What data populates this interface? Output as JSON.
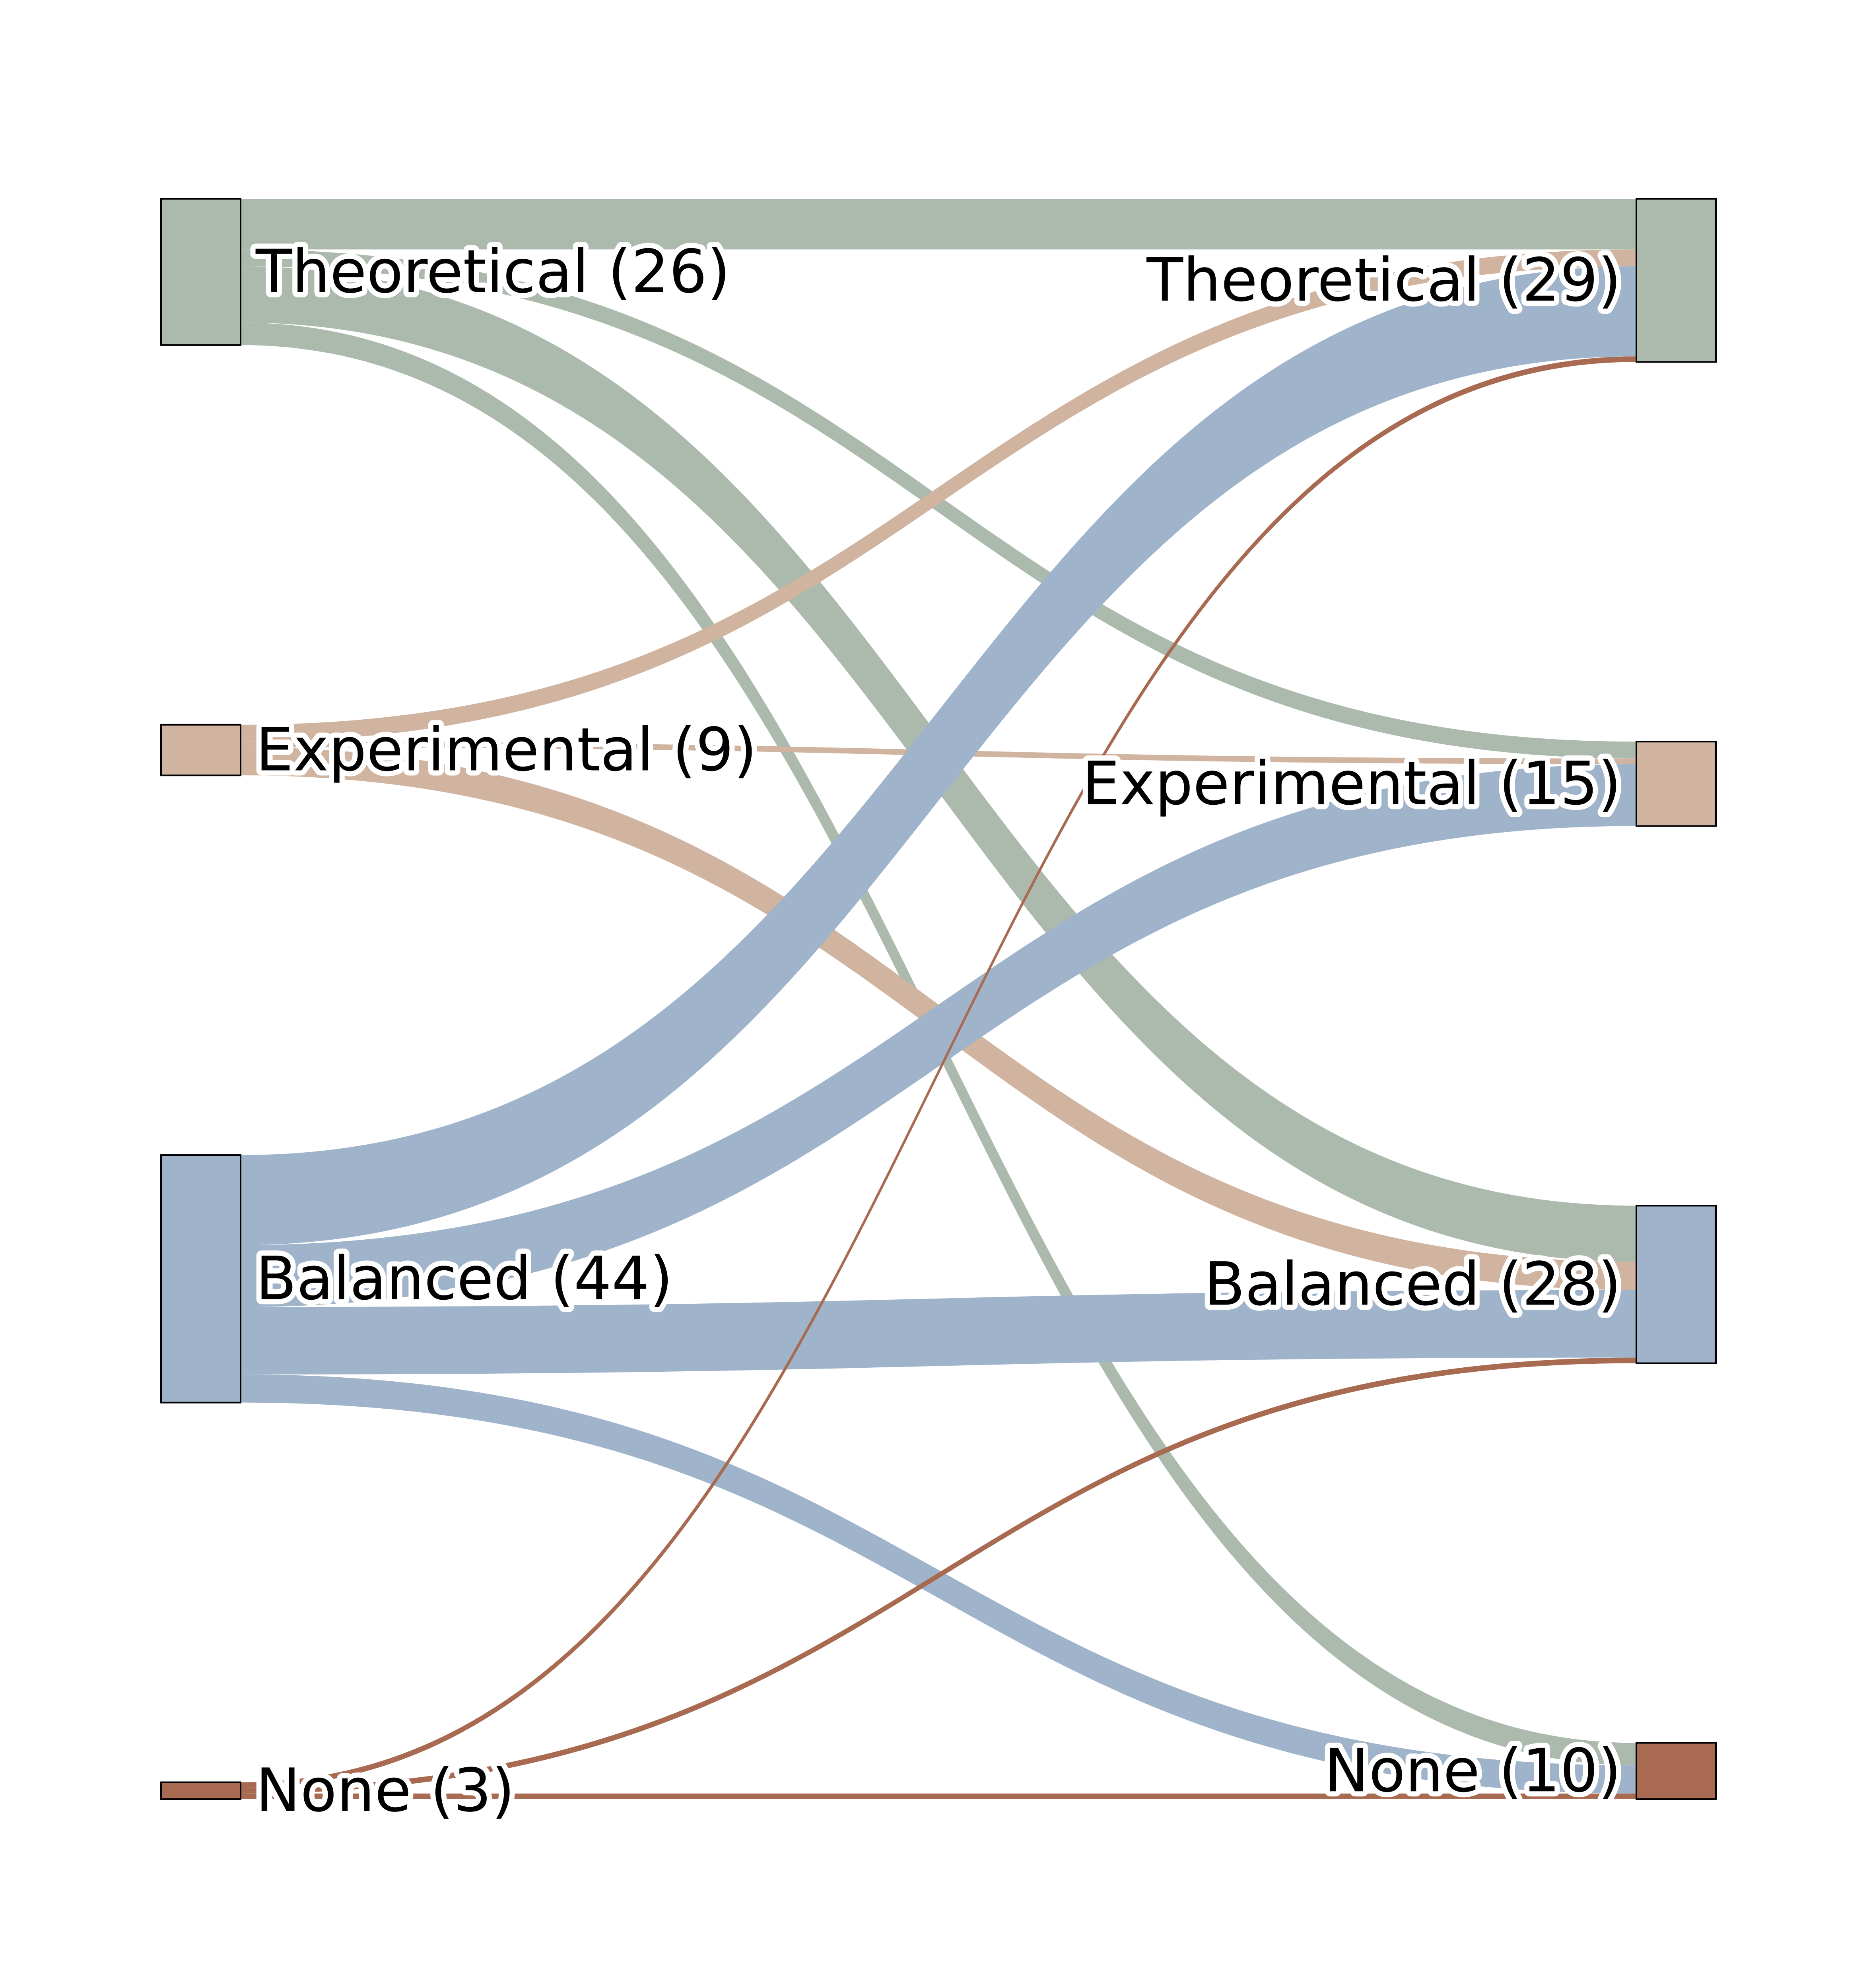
{
  "chart_data": {
    "type": "sankey",
    "colors": {
      "Theoretical": "#acbaad",
      "Experimental": "#d0b4a0",
      "Balanced": "#9fb4ca",
      "None": "#a86b52"
    },
    "sources": [
      {
        "id": "Theoretical",
        "value": 26,
        "label": "Theoretical (26)"
      },
      {
        "id": "Experimental",
        "value": 9,
        "label": "Experimental (9)"
      },
      {
        "id": "Balanced",
        "value": 44,
        "label": "Balanced (44)"
      },
      {
        "id": "None",
        "value": 3,
        "label": "None (3)"
      }
    ],
    "targets": [
      {
        "id": "Theoretical",
        "value": 29,
        "label": "Theoretical (29)"
      },
      {
        "id": "Experimental",
        "value": 15,
        "label": "Experimental (15)"
      },
      {
        "id": "Balanced",
        "value": 28,
        "label": "Balanced (28)"
      },
      {
        "id": "None",
        "value": 10,
        "label": "None (10)"
      }
    ],
    "flows": [
      {
        "from": "Theoretical",
        "to": "Theoretical",
        "value": 9
      },
      {
        "from": "Theoretical",
        "to": "Experimental",
        "value": 3
      },
      {
        "from": "Theoretical",
        "to": "Balanced",
        "value": 10
      },
      {
        "from": "Theoretical",
        "to": "None",
        "value": 4
      },
      {
        "from": "Experimental",
        "to": "Theoretical",
        "value": 3
      },
      {
        "from": "Experimental",
        "to": "Experimental",
        "value": 1
      },
      {
        "from": "Experimental",
        "to": "Balanced",
        "value": 5
      },
      {
        "from": "Balanced",
        "to": "Theoretical",
        "value": 16
      },
      {
        "from": "Balanced",
        "to": "Experimental",
        "value": 11
      },
      {
        "from": "Balanced",
        "to": "Balanced",
        "value": 12
      },
      {
        "from": "Balanced",
        "to": "None",
        "value": 5
      },
      {
        "from": "None",
        "to": "Theoretical",
        "value": 1
      },
      {
        "from": "None",
        "to": "Balanced",
        "value": 1
      },
      {
        "from": "None",
        "to": "None",
        "value": 1
      }
    ]
  }
}
